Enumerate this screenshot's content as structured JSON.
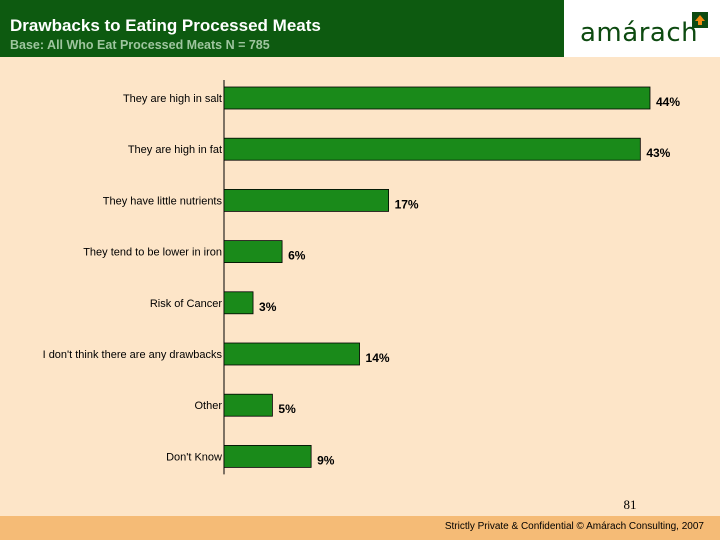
{
  "header": {
    "title": "Drawbacks to Eating Processed Meats",
    "subtitle": "Base: All Who Eat Processed Meats N = 785"
  },
  "logo": {
    "text": "amárach",
    "mark_icon": "house-arrow-logo-icon"
  },
  "chart_data": {
    "type": "bar",
    "orientation": "horizontal",
    "title": "Drawbacks to Eating Processed Meats",
    "xlabel": "",
    "ylabel": "",
    "xlim": [
      0,
      44
    ],
    "grid": false,
    "legend": "none",
    "categories": [
      "They are high in salt",
      "They are high in fat",
      "They have little nutrients",
      "They tend to be lower in iron",
      "Risk of Cancer",
      "I don't think there are any drawbacks",
      "Other",
      "Don't Know"
    ],
    "values": [
      44,
      43,
      17,
      6,
      3,
      14,
      5,
      9
    ],
    "data_labels": [
      "44%",
      "43%",
      "17%",
      "6%",
      "3%",
      "14%",
      "5%",
      "9%"
    ]
  },
  "colors": {
    "bar": "#1a8a1a",
    "header": "#0d5a10",
    "background": "#fde5c8",
    "footer": "#f5bb76"
  },
  "page_number": "81",
  "footer": {
    "text": "Strictly Private & Confidential © Amárach Consulting, 2007"
  }
}
